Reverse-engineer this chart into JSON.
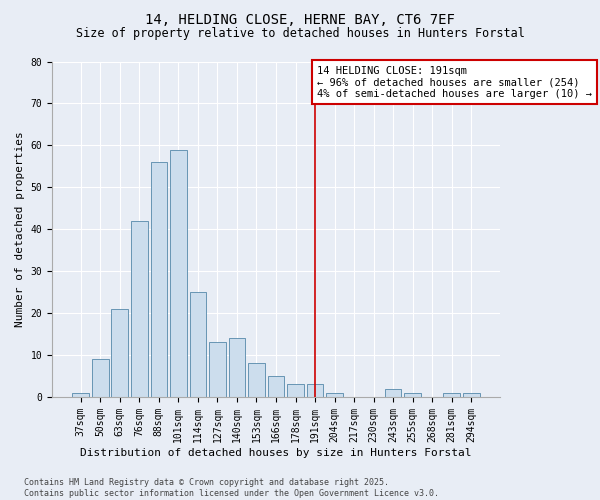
{
  "title_line1": "14, HELDING CLOSE, HERNE BAY, CT6 7EF",
  "title_line2": "Size of property relative to detached houses in Hunters Forstal",
  "xlabel": "Distribution of detached houses by size in Hunters Forstal",
  "ylabel": "Number of detached properties",
  "footnote": "Contains HM Land Registry data © Crown copyright and database right 2025.\nContains public sector information licensed under the Open Government Licence v3.0.",
  "categories": [
    "37sqm",
    "50sqm",
    "63sqm",
    "76sqm",
    "88sqm",
    "101sqm",
    "114sqm",
    "127sqm",
    "140sqm",
    "153sqm",
    "166sqm",
    "178sqm",
    "191sqm",
    "204sqm",
    "217sqm",
    "230sqm",
    "243sqm",
    "255sqm",
    "268sqm",
    "281sqm",
    "294sqm"
  ],
  "values": [
    1,
    9,
    21,
    42,
    56,
    59,
    25,
    13,
    14,
    8,
    5,
    3,
    3,
    1,
    0,
    0,
    2,
    1,
    0,
    1,
    1
  ],
  "bar_color": "#ccdded",
  "bar_edge_color": "#5588aa",
  "highlight_index": 12,
  "highlight_line_color": "#cc0000",
  "annotation_text": "14 HELDING CLOSE: 191sqm\n← 96% of detached houses are smaller (254)\n4% of semi-detached houses are larger (10) →",
  "annotation_box_color": "#ffffff",
  "annotation_box_edge": "#cc0000",
  "ylim": [
    0,
    80
  ],
  "yticks": [
    0,
    10,
    20,
    30,
    40,
    50,
    60,
    70,
    80
  ],
  "background_color": "#e8edf5",
  "plot_background_color": "#e8edf5",
  "grid_color": "#ffffff",
  "title_fontsize": 10,
  "subtitle_fontsize": 8.5,
  "axis_label_fontsize": 8,
  "tick_fontsize": 7,
  "annotation_fontsize": 7.5,
  "footnote_fontsize": 6
}
